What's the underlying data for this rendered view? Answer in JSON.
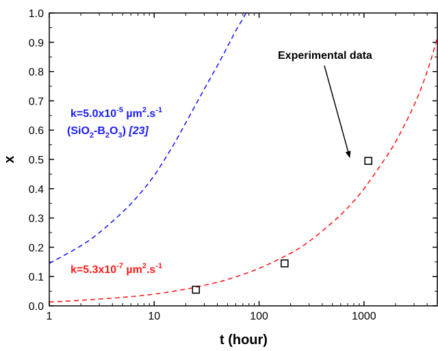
{
  "chart_data": {
    "type": "line",
    "xlabel": "t (hour)",
    "ylabel": "x",
    "xscale": "log",
    "xlim": [
      1,
      5000
    ],
    "ylim": [
      0.0,
      1.0
    ],
    "x_ticks": [
      {
        "value": 1,
        "label": "1"
      },
      {
        "value": 10,
        "label": "10"
      },
      {
        "value": 100,
        "label": "100"
      },
      {
        "value": 1000,
        "label": "1000"
      }
    ],
    "y_ticks": [
      {
        "value": 0.0,
        "label": "0.0"
      },
      {
        "value": 0.1,
        "label": "0.1"
      },
      {
        "value": 0.2,
        "label": "0.2"
      },
      {
        "value": 0.3,
        "label": "0.3"
      },
      {
        "value": 0.4,
        "label": "0.4"
      },
      {
        "value": 0.5,
        "label": "0.5"
      },
      {
        "value": 0.6,
        "label": "0.6"
      },
      {
        "value": 0.7,
        "label": "0.7"
      },
      {
        "value": 0.8,
        "label": "0.8"
      },
      {
        "value": 0.9,
        "label": "0.9"
      },
      {
        "value": 1.0,
        "label": "1.0"
      }
    ],
    "grid": false,
    "series": [
      {
        "style": "dashed",
        "color": "#1a1aff",
        "x": [
          1,
          2,
          3,
          5,
          7,
          10,
          15,
          20,
          30,
          40,
          50,
          60,
          70,
          75
        ],
        "y": [
          0.145,
          0.205,
          0.25,
          0.32,
          0.375,
          0.445,
          0.545,
          0.625,
          0.74,
          0.82,
          0.885,
          0.94,
          0.98,
          1.0
        ]
      },
      {
        "style": "dashed",
        "color": "#ff1a1a",
        "x": [
          1,
          2,
          5,
          10,
          20,
          30,
          50,
          100,
          200,
          300,
          500,
          700,
          1000,
          1500,
          2000,
          3000,
          4000,
          5000
        ],
        "y": [
          0.013,
          0.019,
          0.029,
          0.04,
          0.057,
          0.07,
          0.09,
          0.128,
          0.18,
          0.22,
          0.285,
          0.335,
          0.4,
          0.49,
          0.56,
          0.685,
          0.8,
          0.915
        ]
      },
      {
        "name": "Experimental data",
        "style": "markers",
        "marker": "open-square",
        "color": "#000000",
        "x": [
          25,
          175,
          1100
        ],
        "y": [
          0.055,
          0.145,
          0.495
        ]
      }
    ],
    "annotations": [
      {
        "name": "blue-label",
        "color": "#1a1aff",
        "line1": {
          "a": "k=5.0x10",
          "b": "-5",
          "c": " µm",
          "d": "2",
          "e": ".s",
          "f": "-1"
        },
        "line2": {
          "a": "(SiO",
          "b": "2",
          "c": "-B",
          "d": "2",
          "e": "O",
          "f": "3",
          "g": ") ",
          "h": "[23]"
        }
      },
      {
        "name": "red-label",
        "color": "#ff1a1a",
        "line1": {
          "a": "k=5.3x10",
          "b": "-7",
          "c": " µm",
          "d": "2",
          "e": ".s",
          "f": "-1"
        }
      },
      {
        "name": "experimental-label",
        "color": "#000000",
        "text": "Experimental data"
      }
    ]
  }
}
